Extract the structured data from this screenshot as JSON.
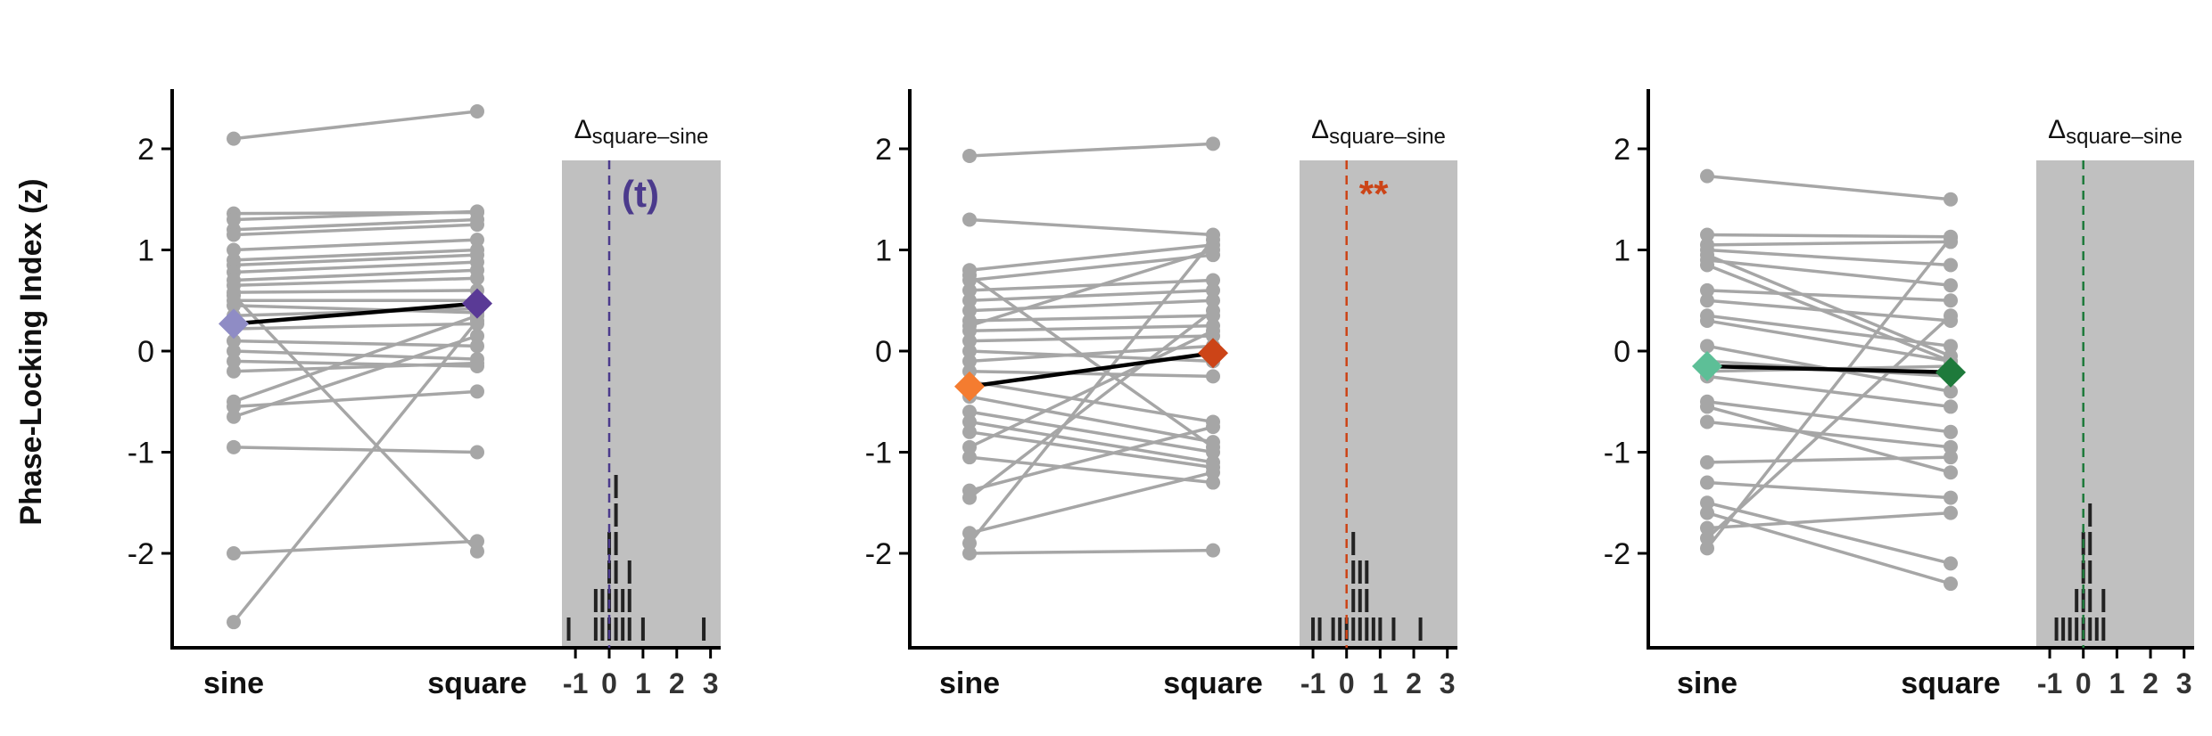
{
  "figure": {
    "ylabel": "Phase-Locking Index (z)",
    "delta_label_base": "Δ",
    "delta_label_sub": "square–sine"
  },
  "chart_data": [
    {
      "type": "scatter",
      "panel": "left",
      "categories": [
        "sine",
        "square"
      ],
      "yticks": [
        -2,
        -1,
        0,
        1,
        2
      ],
      "ylim": [
        -2.9,
        2.6
      ],
      "gray_color": "#a6a6a6",
      "colors": {
        "sine_mean": "#8f8cc5",
        "square_mean": "#5a3a96",
        "dashed": "#4b3a8c"
      },
      "pairs": [
        [
          2.1,
          2.37
        ],
        [
          1.36,
          1.37
        ],
        [
          1.3,
          1.38
        ],
        [
          1.2,
          1.3
        ],
        [
          1.15,
          1.25
        ],
        [
          1.0,
          1.1
        ],
        [
          0.9,
          1.0
        ],
        [
          0.85,
          0.95
        ],
        [
          0.78,
          0.88
        ],
        [
          0.7,
          0.8
        ],
        [
          0.65,
          0.72
        ],
        [
          0.58,
          0.6
        ],
        [
          0.5,
          0.5
        ],
        [
          0.45,
          0.38
        ],
        [
          0.35,
          0.42
        ],
        [
          0.22,
          0.27
        ],
        [
          0.1,
          0.05
        ],
        [
          0.0,
          -0.08
        ],
        [
          -0.1,
          -0.15
        ],
        [
          -0.2,
          -0.12
        ],
        [
          -0.5,
          0.35
        ],
        [
          -0.55,
          -0.4
        ],
        [
          -0.65,
          0.15
        ],
        [
          -0.95,
          -1.0
        ],
        [
          -2.0,
          -1.88
        ],
        [
          -2.68,
          0.3
        ],
        [
          0.55,
          -1.98
        ]
      ],
      "mean": [
        0.27,
        0.47
      ],
      "delta_ticks": [
        -1,
        0,
        1,
        2,
        3
      ],
      "delta_xlim": [
        -1.4,
        3.3
      ],
      "delta_dashed_x": 0,
      "delta_samples": [
        -1.2,
        -0.5,
        -0.35,
        -0.2,
        -0.15,
        -0.1,
        -0.05,
        0.0,
        0.05,
        0.1,
        0.15,
        0.15,
        0.2,
        0.25,
        0.3,
        0.35,
        0.4,
        0.5,
        0.6,
        0.7,
        0.9,
        2.9
      ],
      "significance": "(t)"
    },
    {
      "type": "scatter",
      "panel": "middle",
      "categories": [
        "sine",
        "square"
      ],
      "yticks": [
        -2,
        -1,
        0,
        1,
        2
      ],
      "ylim": [
        -2.9,
        2.6
      ],
      "gray_color": "#a6a6a6",
      "colors": {
        "sine_mean": "#f47c30",
        "square_mean": "#cc4417",
        "dashed": "#cc4417"
      },
      "pairs": [
        [
          1.93,
          2.05
        ],
        [
          1.3,
          1.15
        ],
        [
          0.8,
          1.05
        ],
        [
          0.7,
          0.95
        ],
        [
          0.6,
          0.7
        ],
        [
          0.5,
          0.6
        ],
        [
          0.4,
          0.5
        ],
        [
          0.3,
          0.35
        ],
        [
          0.2,
          0.25
        ],
        [
          0.1,
          0.15
        ],
        [
          0.0,
          -0.1
        ],
        [
          -0.1,
          0.05
        ],
        [
          -0.2,
          -0.25
        ],
        [
          -0.3,
          -0.7
        ],
        [
          -0.45,
          -0.9
        ],
        [
          -0.6,
          -1.0
        ],
        [
          -0.7,
          -1.1
        ],
        [
          -0.8,
          -1.15
        ],
        [
          -0.95,
          0.2
        ],
        [
          -1.05,
          -1.3
        ],
        [
          -1.38,
          -0.75
        ],
        [
          -1.45,
          0.4
        ],
        [
          -1.8,
          -1.2
        ],
        [
          -1.9,
          1.1
        ],
        [
          -2.0,
          -1.97
        ],
        [
          0.25,
          1.0
        ],
        [
          0.75,
          -0.95
        ]
      ],
      "mean": [
        -0.35,
        -0.02
      ],
      "delta_ticks": [
        -1,
        0,
        1,
        2,
        3
      ],
      "delta_xlim": [
        -1.4,
        3.3
      ],
      "delta_dashed_x": 0,
      "delta_samples": [
        -1.0,
        -0.75,
        -0.5,
        -0.3,
        -0.1,
        0.1,
        0.2,
        0.25,
        0.3,
        0.35,
        0.4,
        0.45,
        0.5,
        0.6,
        0.7,
        0.85,
        1.0,
        1.3,
        2.2
      ],
      "significance": "**"
    },
    {
      "type": "scatter",
      "panel": "right",
      "categories": [
        "sine",
        "square"
      ],
      "yticks": [
        -2,
        -1,
        0,
        1,
        2
      ],
      "ylim": [
        -2.9,
        2.6
      ],
      "gray_color": "#a6a6a6",
      "colors": {
        "sine_mean": "#5dbf97",
        "square_mean": "#1e7a3b",
        "dashed": "#1e7a3b"
      },
      "pairs": [
        [
          1.73,
          1.5
        ],
        [
          1.15,
          1.13
        ],
        [
          1.05,
          1.08
        ],
        [
          1.0,
          0.85
        ],
        [
          0.9,
          0.65
        ],
        [
          0.6,
          0.5
        ],
        [
          0.5,
          0.3
        ],
        [
          0.35,
          0.05
        ],
        [
          0.3,
          -0.1
        ],
        [
          0.05,
          -0.4
        ],
        [
          -0.1,
          -0.25
        ],
        [
          -0.25,
          -0.55
        ],
        [
          -0.5,
          -0.8
        ],
        [
          -0.55,
          -1.2
        ],
        [
          -0.7,
          -0.95
        ],
        [
          -1.1,
          -1.05
        ],
        [
          -1.3,
          -1.45
        ],
        [
          -1.5,
          -2.1
        ],
        [
          -1.6,
          -2.3
        ],
        [
          -1.85,
          0.35
        ],
        [
          -1.95,
          1.12
        ],
        [
          0.85,
          -0.1
        ],
        [
          -0.2,
          -0.15
        ],
        [
          0.95,
          -0.05
        ],
        [
          -1.75,
          -1.6
        ]
      ],
      "mean": [
        -0.15,
        -0.21
      ],
      "delta_ticks": [
        -1,
        0,
        1,
        2,
        3
      ],
      "delta_xlim": [
        -1.4,
        3.3
      ],
      "delta_dashed_x": 0,
      "delta_samples": [
        -0.8,
        -0.6,
        -0.45,
        -0.3,
        -0.2,
        -0.1,
        -0.05,
        0.0,
        0.05,
        0.1,
        0.15,
        0.2,
        0.25,
        0.3,
        0.4,
        0.55,
        0.7
      ],
      "significance": ""
    }
  ]
}
